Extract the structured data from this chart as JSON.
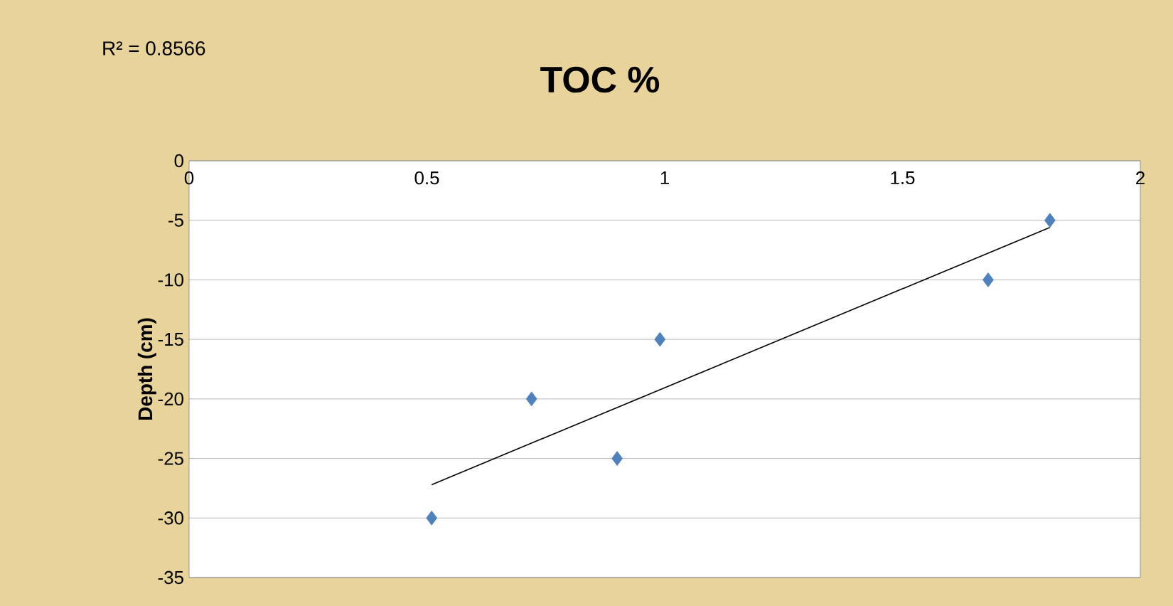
{
  "chart_data": {
    "type": "scatter",
    "title": "TOC %",
    "ylabel": "Depth (cm)",
    "annotations": [
      "R² = 0.8566"
    ],
    "series": [
      {
        "color": "#4f81bd",
        "marker": "diamond",
        "x": [
          1.81,
          1.68,
          0.99,
          0.72,
          0.9,
          0.51
        ],
        "values": [
          -5,
          -10,
          -15,
          -20,
          -25,
          -30
        ]
      },
      {
        "type": "line",
        "color": "#000000",
        "marker": "none",
        "x": [
          0.51,
          1.81
        ],
        "values": [
          -27.2,
          -5.6
        ]
      }
    ],
    "xlim": [
      0,
      2
    ],
    "ylim": [
      -35,
      0
    ],
    "xticks": [
      0,
      0.5,
      1,
      1.5,
      2
    ],
    "yticks": [
      -35,
      -30,
      -25,
      -20,
      -15,
      -10,
      -5,
      0
    ],
    "grid": "y"
  }
}
